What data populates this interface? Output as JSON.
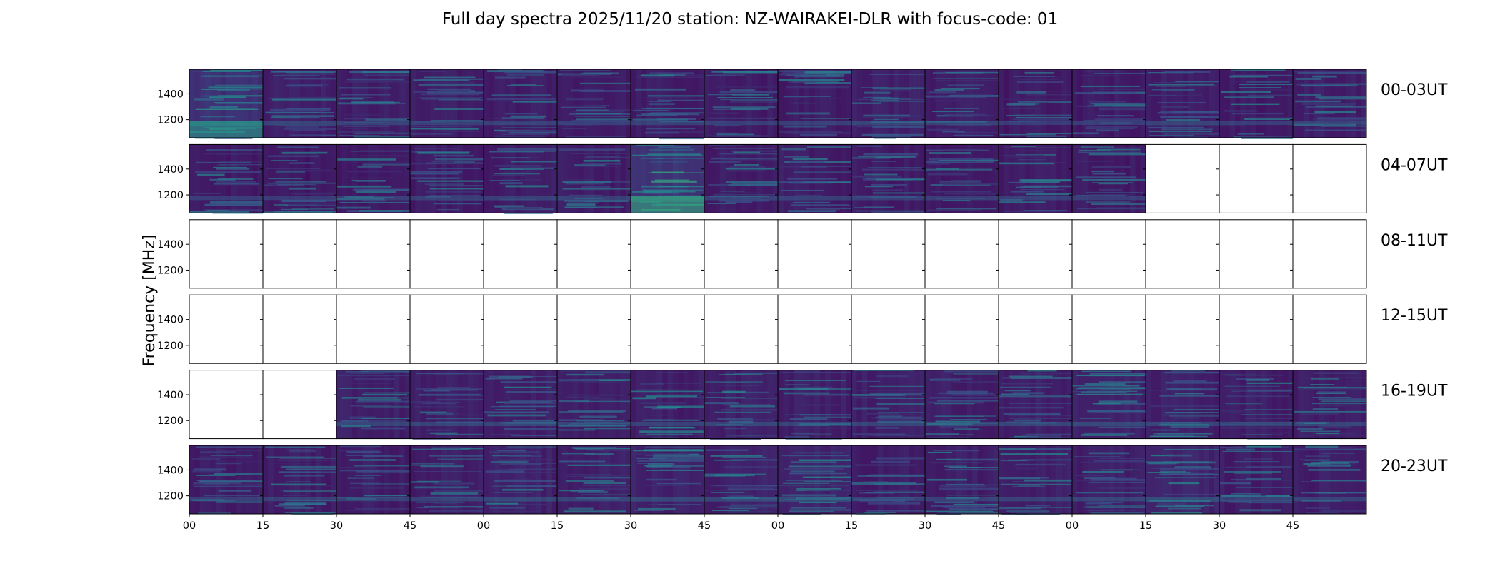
{
  "chart_data": {
    "type": "heatmap",
    "title": "Full day spectra 2025/11/20 station: NZ-WAIRAKEI-DLR with focus-code: 01",
    "ylabel": "Frequency [MHz]",
    "y_ticks": [
      "1400",
      "1200"
    ],
    "y_tick_values": [
      1400,
      1200
    ],
    "ylim": [
      1060,
      1590
    ],
    "x_ticks": [
      "00",
      "15",
      "30",
      "45",
      "00",
      "15",
      "30",
      "45",
      "00",
      "15",
      "30",
      "45",
      "00",
      "15",
      "30",
      "45"
    ],
    "colormap": "viridis",
    "colormap_colors": [
      "#440154",
      "#3b528b",
      "#21918c",
      "#5ec962",
      "#fde725"
    ],
    "grid": false,
    "rows": [
      {
        "label": "00-03UT",
        "panels": [
          {
            "has_data": true,
            "mean_level": 0.38
          },
          {
            "has_data": true,
            "mean_level": 0.22
          },
          {
            "has_data": true,
            "mean_level": 0.2
          },
          {
            "has_data": true,
            "mean_level": 0.19
          },
          {
            "has_data": true,
            "mean_level": 0.2
          },
          {
            "has_data": true,
            "mean_level": 0.19
          },
          {
            "has_data": true,
            "mean_level": 0.2
          },
          {
            "has_data": true,
            "mean_level": 0.19
          },
          {
            "has_data": true,
            "mean_level": 0.2
          },
          {
            "has_data": true,
            "mean_level": 0.22
          },
          {
            "has_data": true,
            "mean_level": 0.2
          },
          {
            "has_data": true,
            "mean_level": 0.17
          },
          {
            "has_data": true,
            "mean_level": 0.18
          },
          {
            "has_data": true,
            "mean_level": 0.22
          },
          {
            "has_data": true,
            "mean_level": 0.18
          },
          {
            "has_data": true,
            "mean_level": 0.21
          }
        ]
      },
      {
        "label": "04-07UT",
        "panels": [
          {
            "has_data": true,
            "mean_level": 0.17
          },
          {
            "has_data": true,
            "mean_level": 0.16
          },
          {
            "has_data": true,
            "mean_level": 0.18
          },
          {
            "has_data": true,
            "mean_level": 0.18
          },
          {
            "has_data": true,
            "mean_level": 0.19
          },
          {
            "has_data": true,
            "mean_level": 0.19
          },
          {
            "has_data": true,
            "mean_level": 0.42
          },
          {
            "has_data": true,
            "mean_level": 0.19
          },
          {
            "has_data": true,
            "mean_level": 0.19
          },
          {
            "has_data": true,
            "mean_level": 0.18
          },
          {
            "has_data": true,
            "mean_level": 0.18
          },
          {
            "has_data": true,
            "mean_level": 0.18
          },
          {
            "has_data": true,
            "mean_level": 0.17
          },
          {
            "has_data": false,
            "mean_level": 0
          },
          {
            "has_data": false,
            "mean_level": 0
          },
          {
            "has_data": false,
            "mean_level": 0
          }
        ]
      },
      {
        "label": "08-11UT",
        "panels": [
          {
            "has_data": false,
            "mean_level": 0
          },
          {
            "has_data": false,
            "mean_level": 0
          },
          {
            "has_data": false,
            "mean_level": 0
          },
          {
            "has_data": false,
            "mean_level": 0
          },
          {
            "has_data": false,
            "mean_level": 0
          },
          {
            "has_data": false,
            "mean_level": 0
          },
          {
            "has_data": false,
            "mean_level": 0
          },
          {
            "has_data": false,
            "mean_level": 0
          },
          {
            "has_data": false,
            "mean_level": 0
          },
          {
            "has_data": false,
            "mean_level": 0
          },
          {
            "has_data": false,
            "mean_level": 0
          },
          {
            "has_data": false,
            "mean_level": 0
          },
          {
            "has_data": false,
            "mean_level": 0
          },
          {
            "has_data": false,
            "mean_level": 0
          },
          {
            "has_data": false,
            "mean_level": 0
          },
          {
            "has_data": false,
            "mean_level": 0
          }
        ]
      },
      {
        "label": "12-15UT",
        "panels": [
          {
            "has_data": false,
            "mean_level": 0
          },
          {
            "has_data": false,
            "mean_level": 0
          },
          {
            "has_data": false,
            "mean_level": 0
          },
          {
            "has_data": false,
            "mean_level": 0
          },
          {
            "has_data": false,
            "mean_level": 0
          },
          {
            "has_data": false,
            "mean_level": 0
          },
          {
            "has_data": false,
            "mean_level": 0
          },
          {
            "has_data": false,
            "mean_level": 0
          },
          {
            "has_data": false,
            "mean_level": 0
          },
          {
            "has_data": false,
            "mean_level": 0
          },
          {
            "has_data": false,
            "mean_level": 0
          },
          {
            "has_data": false,
            "mean_level": 0
          },
          {
            "has_data": false,
            "mean_level": 0
          },
          {
            "has_data": false,
            "mean_level": 0
          },
          {
            "has_data": false,
            "mean_level": 0
          },
          {
            "has_data": false,
            "mean_level": 0
          }
        ]
      },
      {
        "label": "16-19UT",
        "panels": [
          {
            "has_data": false,
            "mean_level": 0
          },
          {
            "has_data": false,
            "mean_level": 0
          },
          {
            "has_data": true,
            "mean_level": 0.22
          },
          {
            "has_data": true,
            "mean_level": 0.22
          },
          {
            "has_data": true,
            "mean_level": 0.22
          },
          {
            "has_data": true,
            "mean_level": 0.21
          },
          {
            "has_data": true,
            "mean_level": 0.21
          },
          {
            "has_data": true,
            "mean_level": 0.22
          },
          {
            "has_data": true,
            "mean_level": 0.22
          },
          {
            "has_data": true,
            "mean_level": 0.22
          },
          {
            "has_data": true,
            "mean_level": 0.22
          },
          {
            "has_data": true,
            "mean_level": 0.23
          },
          {
            "has_data": true,
            "mean_level": 0.24
          },
          {
            "has_data": true,
            "mean_level": 0.22
          },
          {
            "has_data": true,
            "mean_level": 0.21
          },
          {
            "has_data": true,
            "mean_level": 0.22
          }
        ]
      },
      {
        "label": "20-23UT",
        "panels": [
          {
            "has_data": true,
            "mean_level": 0.19
          },
          {
            "has_data": true,
            "mean_level": 0.2
          },
          {
            "has_data": true,
            "mean_level": 0.2
          },
          {
            "has_data": true,
            "mean_level": 0.21
          },
          {
            "has_data": true,
            "mean_level": 0.23
          },
          {
            "has_data": true,
            "mean_level": 0.22
          },
          {
            "has_data": true,
            "mean_level": 0.24
          },
          {
            "has_data": true,
            "mean_level": 0.24
          },
          {
            "has_data": true,
            "mean_level": 0.26
          },
          {
            "has_data": true,
            "mean_level": 0.2
          },
          {
            "has_data": true,
            "mean_level": 0.21
          },
          {
            "has_data": true,
            "mean_level": 0.21
          },
          {
            "has_data": true,
            "mean_level": 0.22
          },
          {
            "has_data": true,
            "mean_level": 0.27
          },
          {
            "has_data": true,
            "mean_level": 0.2
          },
          {
            "has_data": true,
            "mean_level": 0.21
          }
        ]
      }
    ]
  }
}
